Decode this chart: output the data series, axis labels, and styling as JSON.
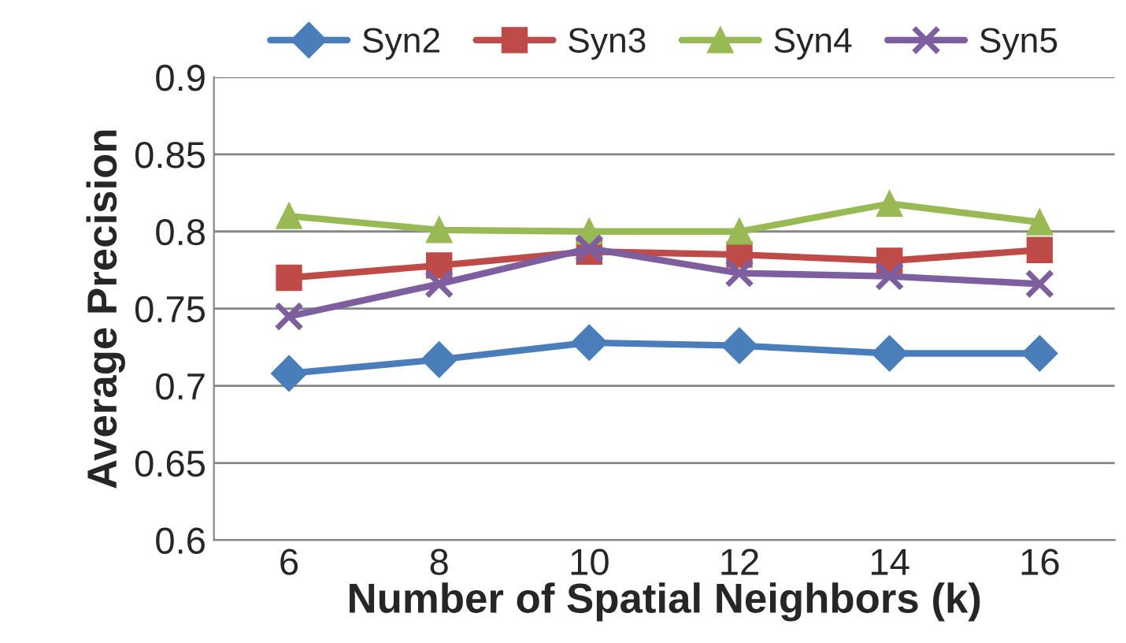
{
  "chart_data": {
    "type": "line",
    "xlabel": "Number of Spatial Neighbors (k)",
    "ylabel": "Average Precision",
    "categories": [
      "6",
      "8",
      "10",
      "12",
      "14",
      "16"
    ],
    "series": [
      {
        "name": "Syn2",
        "color": "#4a7ebb",
        "marker": "diamond",
        "values": [
          0.708,
          0.717,
          0.728,
          0.726,
          0.721,
          0.721
        ]
      },
      {
        "name": "Syn3",
        "color": "#be4b48",
        "marker": "square",
        "values": [
          0.77,
          0.778,
          0.787,
          0.785,
          0.781,
          0.788
        ]
      },
      {
        "name": "Syn4",
        "color": "#98b954",
        "marker": "triangle",
        "values": [
          0.81,
          0.801,
          0.8,
          0.8,
          0.818,
          0.806
        ]
      },
      {
        "name": "Syn5",
        "color": "#7d5fa0",
        "marker": "cross",
        "values": [
          0.745,
          0.766,
          0.789,
          0.773,
          0.771,
          0.766
        ]
      }
    ],
    "ylim": [
      0.6,
      0.9
    ],
    "yticks": [
      0.6,
      0.65,
      0.7,
      0.75,
      0.8,
      0.85,
      0.9
    ],
    "grid": "y",
    "legend": "top"
  }
}
